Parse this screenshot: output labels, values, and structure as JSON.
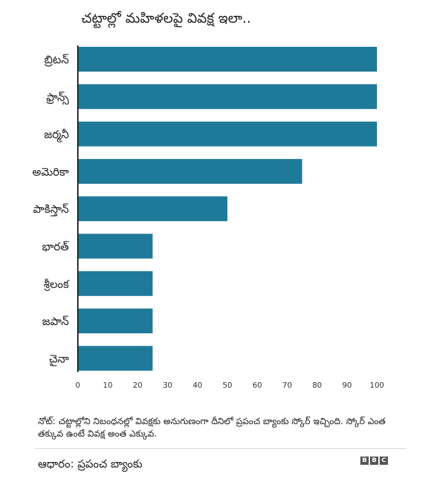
{
  "title": "చట్టాల్లో మహిళలపై వివక్ష ఇలా..",
  "note": "నోట్: చట్టాల్లోని నిబంధనల్లో వివక్షకు అనుగుణంగా దీనిలో ప్రపంచ బ్యాంకు స్కోర్ ఇచ్చింది. స్కోర్ ఎంత తక్కువ ఉంటే వివక్ష అంత ఎక్కువ.",
  "source": "ఆధారం: ప్రపంచ బ్యాంకు",
  "logo": [
    "B",
    "B",
    "C"
  ],
  "colors": {
    "bar": "#1f7a99",
    "axis": "#222222"
  },
  "chart_data": {
    "type": "bar",
    "orientation": "horizontal",
    "categories": [
      "బ్రిటన్",
      "ఫ్రాన్స్",
      "జర్మనీ",
      "అమెరికా",
      "పాకిస్తాన్",
      "భారత్",
      "శ్రీలంక",
      "జపాన్",
      "చైనా"
    ],
    "values": [
      100,
      100,
      100,
      75,
      50,
      25,
      25,
      25,
      25
    ],
    "xlim": [
      0,
      100
    ],
    "xticks": [
      0,
      10,
      20,
      30,
      40,
      50,
      60,
      70,
      80,
      90,
      100
    ],
    "grid": false
  }
}
